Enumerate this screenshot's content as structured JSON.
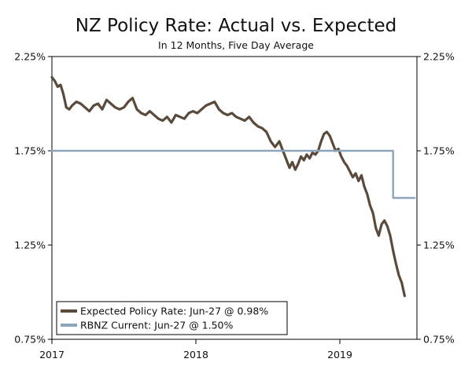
{
  "chart_data": {
    "type": "line",
    "title": "NZ Policy Rate: Actual vs. Expected",
    "subtitle": "In 12 Months, Five Day Average",
    "xlabel": "",
    "ylabel": "",
    "ylim": [
      0.75,
      2.25
    ],
    "xlim": [
      2017.0,
      2019.48
    ],
    "y_ticks": [
      {
        "value": 2.25,
        "label": "2.25%"
      },
      {
        "value": 1.75,
        "label": "1.75%"
      },
      {
        "value": 1.25,
        "label": "1.25%"
      },
      {
        "value": 0.75,
        "label": "0.75%"
      }
    ],
    "x_ticks": [
      {
        "value": 2017.0,
        "label": "2017"
      },
      {
        "value": 2018.0,
        "label": "2018"
      },
      {
        "value": 2019.0,
        "label": "2019"
      }
    ],
    "series": [
      {
        "name": "Expected Policy Rate",
        "legend": "Expected Policy Rate: Jun-27 @ 0.98%",
        "color": "#5a4a3c",
        "x": [
          2017.0,
          2017.02,
          2017.04,
          2017.06,
          2017.08,
          2017.1,
          2017.12,
          2017.14,
          2017.17,
          2017.2,
          2017.23,
          2017.26,
          2017.29,
          2017.32,
          2017.35,
          2017.38,
          2017.41,
          2017.44,
          2017.47,
          2017.5,
          2017.53,
          2017.56,
          2017.59,
          2017.62,
          2017.65,
          2017.68,
          2017.71,
          2017.74,
          2017.77,
          2017.8,
          2017.83,
          2017.86,
          2017.89,
          2017.92,
          2017.95,
          2017.98,
          2018.01,
          2018.04,
          2018.07,
          2018.1,
          2018.13,
          2018.16,
          2018.19,
          2018.22,
          2018.25,
          2018.28,
          2018.31,
          2018.34,
          2018.37,
          2018.4,
          2018.43,
          2018.46,
          2018.49,
          2018.52,
          2018.55,
          2018.58,
          2018.61,
          2018.63,
          2018.65,
          2018.67,
          2018.69,
          2018.71,
          2018.73,
          2018.75,
          2018.77,
          2018.79,
          2018.81,
          2018.83,
          2018.85,
          2018.87,
          2018.89,
          2018.91,
          2018.93,
          2018.95,
          2018.97,
          2018.99,
          2019.01,
          2019.03,
          2019.05,
          2019.07,
          2019.09,
          2019.11,
          2019.13,
          2019.15,
          2019.17,
          2019.19,
          2019.21,
          2019.23,
          2019.25,
          2019.27,
          2019.29,
          2019.31,
          2019.33,
          2019.35,
          2019.37,
          2019.39,
          2019.41,
          2019.43,
          2019.45
        ],
        "values": [
          2.14,
          2.12,
          2.09,
          2.1,
          2.05,
          1.98,
          1.97,
          1.99,
          2.01,
          2.0,
          1.98,
          1.96,
          1.99,
          2.0,
          1.97,
          2.02,
          2.0,
          1.98,
          1.97,
          1.98,
          2.01,
          2.03,
          1.97,
          1.95,
          1.94,
          1.96,
          1.94,
          1.92,
          1.91,
          1.93,
          1.9,
          1.94,
          1.93,
          1.92,
          1.95,
          1.96,
          1.95,
          1.97,
          1.99,
          2.0,
          2.01,
          1.97,
          1.95,
          1.94,
          1.95,
          1.93,
          1.92,
          1.91,
          1.93,
          1.9,
          1.88,
          1.87,
          1.85,
          1.8,
          1.77,
          1.8,
          1.74,
          1.7,
          1.66,
          1.69,
          1.65,
          1.68,
          1.72,
          1.7,
          1.73,
          1.71,
          1.74,
          1.73,
          1.75,
          1.8,
          1.84,
          1.85,
          1.83,
          1.79,
          1.75,
          1.76,
          1.72,
          1.69,
          1.67,
          1.64,
          1.61,
          1.63,
          1.59,
          1.62,
          1.56,
          1.52,
          1.46,
          1.42,
          1.34,
          1.3,
          1.36,
          1.38,
          1.35,
          1.3,
          1.22,
          1.15,
          1.09,
          1.05,
          0.98
        ]
      },
      {
        "name": "RBNZ Current",
        "legend": "RBNZ Current: Jun-27 @ 1.50%",
        "color": "#8da5b8",
        "x": [
          2017.0,
          2019.37,
          2019.37,
          2019.52
        ],
        "values": [
          1.75,
          1.75,
          1.5,
          1.5
        ]
      }
    ],
    "legend_position": "bottom-left",
    "grid": false
  }
}
